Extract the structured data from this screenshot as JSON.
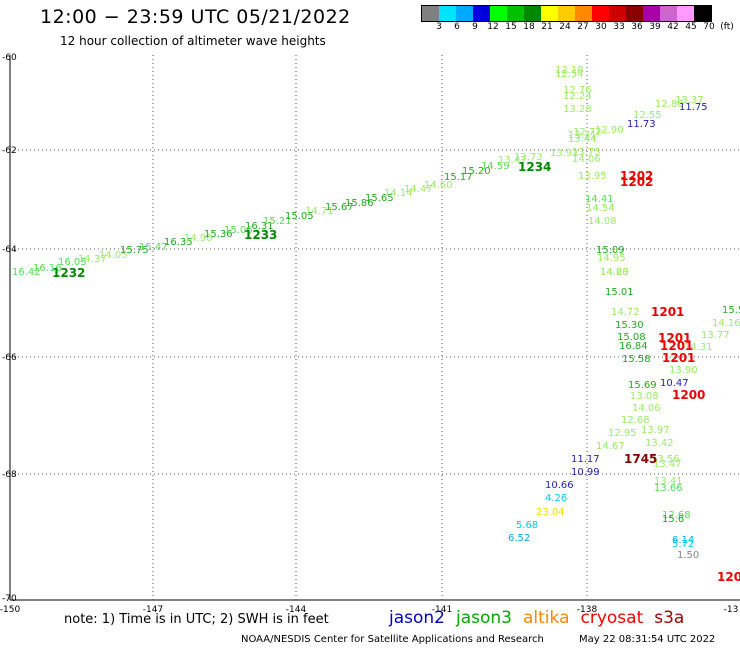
{
  "title": "12:00 − 23:59 UTC 05/21/2022",
  "subtitle": "12 hour collection of altimeter wave heights",
  "legend": {
    "colors": [
      "#808080",
      "#00e5ff",
      "#00aaff",
      "#0000dd",
      "#00ff00",
      "#00c000",
      "#008800",
      "#ffff00",
      "#ffcc00",
      "#ff8800",
      "#ff0000",
      "#cc0000",
      "#880000",
      "#aa00aa",
      "#cc66cc",
      "#ff99ff",
      "#000000"
    ],
    "labels": [
      "3",
      "6",
      "9",
      "12",
      "15",
      "18",
      "21",
      "24",
      "27",
      "30",
      "33",
      "36",
      "39",
      "42",
      "45",
      "70",
      "(ft)"
    ]
  },
  "axes": {
    "lat_ticks": [
      "-60",
      "-62",
      "-64",
      "-66",
      "-68",
      "-70"
    ],
    "lon_ticks": [
      "-150",
      "-147",
      "-144",
      "-141",
      "-138",
      "-13"
    ]
  },
  "points": [
    {
      "t": "16.42",
      "c": "#55dd55"
    },
    {
      "t": "16.16",
      "c": "#55dd55"
    },
    {
      "t": "16.05",
      "c": "#55dd55"
    },
    {
      "t": "14.37",
      "c": "#99ee66"
    },
    {
      "t": "14.05",
      "c": "#99ee66"
    },
    {
      "t": "15.75",
      "c": "#22aa22"
    },
    {
      "t": "15.47",
      "c": "#55dd55"
    },
    {
      "t": "16.35",
      "c": "#22aa22"
    },
    {
      "t": "14.90",
      "c": "#99ee66"
    },
    {
      "t": "15.36",
      "c": "#22aa22"
    },
    {
      "t": "15.06",
      "c": "#55dd55"
    },
    {
      "t": "16.31",
      "c": "#22aa22"
    },
    {
      "t": "15.21",
      "c": "#55dd55"
    },
    {
      "t": "15.05",
      "c": "#22aa22"
    },
    {
      "t": "14.71",
      "c": "#99ee66"
    },
    {
      "t": "15.67",
      "c": "#22aa22"
    },
    {
      "t": "15.86",
      "c": "#22aa22"
    },
    {
      "t": "15.65",
      "c": "#22aa22"
    },
    {
      "t": "14.14",
      "c": "#99ee66"
    },
    {
      "t": "14.47",
      "c": "#99ee66"
    },
    {
      "t": "14.60",
      "c": "#99ee66"
    },
    {
      "t": "15.17",
      "c": "#22aa22"
    },
    {
      "t": "15.20",
      "c": "#22aa22"
    },
    {
      "t": "14.59",
      "c": "#55dd55"
    },
    {
      "t": "13.47",
      "c": "#99ee66"
    },
    {
      "t": "13.73",
      "c": "#99ee66"
    },
    {
      "t": "13.92",
      "c": "#99ee66"
    },
    {
      "t": "12.72",
      "c": "#99ee66"
    },
    {
      "t": "12.90",
      "c": "#99ee66"
    },
    {
      "t": "12.55",
      "c": "#99ee66"
    },
    {
      "t": "12.86",
      "c": "#99ee66"
    },
    {
      "t": "13.37",
      "c": "#99ee66"
    },
    {
      "t": "11.73",
      "c": "#2222bb"
    },
    {
      "t": "11.75",
      "c": "#2222bb"
    },
    {
      "t": "12.18",
      "c": "#99ee66"
    },
    {
      "t": "12.54",
      "c": "#99ee66"
    },
    {
      "t": "12.76",
      "c": "#99ee66"
    },
    {
      "t": "12.24",
      "c": "#99ee66"
    },
    {
      "t": "13.28",
      "c": "#99ee66"
    },
    {
      "t": "13.31",
      "c": "#99ee66"
    },
    {
      "t": "13.44",
      "c": "#99ee66"
    },
    {
      "t": "13.75",
      "c": "#99ee66"
    },
    {
      "t": "14.06",
      "c": "#99ee66"
    },
    {
      "t": "13.95",
      "c": "#99ee66"
    },
    {
      "t": "14.41",
      "c": "#55dd55"
    },
    {
      "t": "14.54",
      "c": "#99ee66"
    },
    {
      "t": "14.08",
      "c": "#99ee66"
    },
    {
      "t": "15.09",
      "c": "#22aa22"
    },
    {
      "t": "14.95",
      "c": "#99ee66"
    },
    {
      "t": "14.68",
      "c": "#99ee66"
    },
    {
      "t": "14.20",
      "c": "#99ee66"
    },
    {
      "t": "15.01",
      "c": "#22aa22"
    },
    {
      "t": "14.72",
      "c": "#99ee66"
    },
    {
      "t": "15.30",
      "c": "#22aa22"
    },
    {
      "t": "15.08",
      "c": "#22aa22"
    },
    {
      "t": "16.84",
      "c": "#22aa22"
    },
    {
      "t": "15.58",
      "c": "#22aa22"
    },
    {
      "t": "15.69",
      "c": "#22aa22"
    },
    {
      "t": "13.08",
      "c": "#99ee66"
    },
    {
      "t": "14.06",
      "c": "#99ee66"
    },
    {
      "t": "12.68",
      "c": "#99ee66"
    },
    {
      "t": "12.95",
      "c": "#99ee66"
    },
    {
      "t": "14.67",
      "c": "#99ee66"
    },
    {
      "t": "13.97",
      "c": "#99ee66"
    },
    {
      "t": "13.42",
      "c": "#99ee66"
    },
    {
      "t": "13.56",
      "c": "#99ee66"
    },
    {
      "t": "13.47",
      "c": "#99ee66"
    },
    {
      "t": "13.41",
      "c": "#99ee66"
    },
    {
      "t": "13.66",
      "c": "#55dd55"
    },
    {
      "t": "12.68",
      "c": "#55dd55"
    },
    {
      "t": "15.6",
      "c": "#22aa22"
    },
    {
      "t": "15.51",
      "c": "#22aa22"
    },
    {
      "t": "14.16",
      "c": "#99ee66"
    },
    {
      "t": "13.77",
      "c": "#99ee66"
    },
    {
      "t": "14.31",
      "c": "#99ee66"
    },
    {
      "t": "13.90",
      "c": "#99ee66"
    },
    {
      "t": "10.47",
      "c": "#2222bb"
    },
    {
      "t": "11.17",
      "c": "#2222bb"
    },
    {
      "t": "10.99",
      "c": "#2222bb"
    },
    {
      "t": "10.66",
      "c": "#2222bb"
    },
    {
      "t": "4.26",
      "c": "#00ccee"
    },
    {
      "t": "23.04",
      "c": "#eedd00"
    },
    {
      "t": "5.68",
      "c": "#00ccee"
    },
    {
      "t": "6.52",
      "c": "#00aaff"
    },
    {
      "t": "6.14",
      "c": "#00aaff"
    },
    {
      "t": "5.72",
      "c": "#00ccee"
    },
    {
      "t": "1.50",
      "c": "#888888"
    }
  ],
  "time_marks": [
    {
      "t": "1232",
      "c": "#008800"
    },
    {
      "t": "1233",
      "c": "#008800"
    },
    {
      "t": "1234",
      "c": "#008800"
    },
    {
      "t": "1202",
      "c": "#ee0000"
    },
    {
      "t": "1202",
      "c": "#ee0000"
    },
    {
      "t": "1201",
      "c": "#ee0000"
    },
    {
      "t": "1201",
      "c": "#ee0000"
    },
    {
      "t": "1201",
      "c": "#ee0000"
    },
    {
      "t": "1201",
      "c": "#ee0000"
    },
    {
      "t": "1200",
      "c": "#ee0000"
    },
    {
      "t": "1745",
      "c": "#880000"
    },
    {
      "t": "120",
      "c": "#ee0000"
    }
  ],
  "note": "note:  1) Time is in UTC;  2) SWH is in feet",
  "satellites": [
    {
      "name": "jason2",
      "color": "#0000cc"
    },
    {
      "name": "jason3",
      "color": "#00aa00"
    },
    {
      "name": "altika",
      "color": "#ff8800"
    },
    {
      "name": "cryosat",
      "color": "#ff0000"
    },
    {
      "name": "s3a",
      "color": "#aa0000"
    }
  ],
  "credit": "NOAA/NESDIS Center for Satellite Applications and Research",
  "timestamp": "May 22 08:31:54 UTC 2022"
}
